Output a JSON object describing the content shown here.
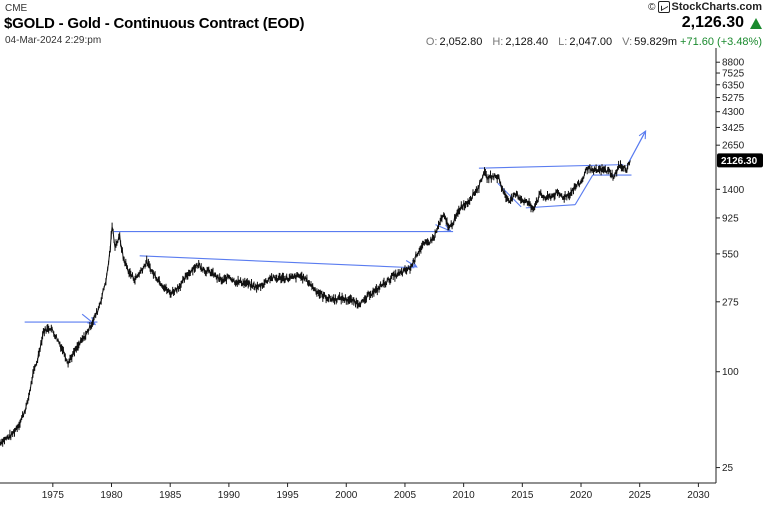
{
  "header": {
    "exchange": "CME",
    "title": "$GOLD - Gold - Continuous Contract (EOD)",
    "datetime": "04-Mar-2024 2:29:pm",
    "brand": "StockCharts.com",
    "brand_prefix": "©",
    "last_price": "2,126.30",
    "ohlc": {
      "open_label": "O:",
      "open": "2,052.80",
      "high_label": "H:",
      "high": "2,128.40",
      "low_label": "L:",
      "low": "2,047.00",
      "volume_label": "V:",
      "volume": "59.829m",
      "change": "+71.60 (+3.48%)"
    }
  },
  "colors": {
    "price": "#111111",
    "trendline": "#5a7cf0",
    "up": "#1a8a2e",
    "badge": "#000000"
  },
  "chart_data": {
    "type": "line",
    "scale": "log",
    "title": "$GOLD - Gold - Continuous Contract (EOD)",
    "xlim": [
      1970.5,
      2031.5
    ],
    "ylim": [
      20,
      10200
    ],
    "x_ticks": [
      1975,
      1980,
      1985,
      1990,
      1995,
      2000,
      2005,
      2010,
      2015,
      2020,
      2025,
      2030
    ],
    "x_tick_labels": [
      "1975",
      "1980",
      "1985",
      "1990",
      "1995",
      "2000",
      "2005",
      "2010",
      "2015",
      "2020",
      "2025",
      "2030"
    ],
    "y_ticks": [
      8800,
      7525,
      6350,
      5275,
      4300,
      3425,
      2650,
      1400,
      925,
      550,
      275,
      100,
      25
    ],
    "y_tick_labels": [
      "8800",
      "7525",
      "6350",
      "5275",
      "4300",
      "3425",
      "2650",
      "1400",
      "925",
      "550",
      "275",
      "100",
      "25"
    ],
    "last_value_label": "2126.30",
    "last_value": 2126.3,
    "series": [
      {
        "name": "Gold",
        "x": [
          1970.5,
          1971.5,
          1972.2,
          1972.8,
          1973.3,
          1973.7,
          1974.2,
          1974.8,
          1975.3,
          1975.9,
          1976.3,
          1976.7,
          1977.3,
          1977.8,
          1978.3,
          1978.8,
          1979.2,
          1979.6,
          1979.9,
          1980.05,
          1980.3,
          1980.7,
          1981.0,
          1981.5,
          1982.0,
          1982.5,
          1983.0,
          1983.5,
          1984.0,
          1984.5,
          1985.0,
          1985.5,
          1986.0,
          1986.5,
          1987.0,
          1987.5,
          1988.0,
          1988.5,
          1989.0,
          1989.5,
          1990.0,
          1990.5,
          1991.0,
          1991.5,
          1992.0,
          1992.5,
          1993.0,
          1993.5,
          1994.0,
          1994.5,
          1995.0,
          1995.5,
          1996.0,
          1996.5,
          1997.0,
          1997.5,
          1998.0,
          1998.5,
          1999.0,
          1999.5,
          2000.0,
          2000.5,
          2001.0,
          2001.5,
          2002.0,
          2002.5,
          2003.0,
          2003.5,
          2004.0,
          2004.5,
          2005.0,
          2005.5,
          2006.0,
          2006.5,
          2007.0,
          2007.5,
          2008.0,
          2008.3,
          2008.8,
          2009.3,
          2009.8,
          2010.3,
          2010.8,
          2011.3,
          2011.7,
          2012.0,
          2012.5,
          2013.0,
          2013.3,
          2013.6,
          2014.0,
          2014.5,
          2015.0,
          2015.5,
          2015.9,
          2016.5,
          2017.0,
          2017.5,
          2018.0,
          2018.5,
          2019.0,
          2019.5,
          2020.0,
          2020.6,
          2021.0,
          2021.5,
          2022.0,
          2022.5,
          2022.8,
          2023.2,
          2023.6,
          2023.9,
          2024.2
        ],
        "values": [
          36,
          40,
          48,
          62,
          95,
          120,
          180,
          190,
          165,
          135,
          115,
          128,
          150,
          170,
          200,
          240,
          300,
          400,
          600,
          820,
          620,
          700,
          520,
          420,
          380,
          430,
          490,
          420,
          380,
          340,
          310,
          330,
          360,
          410,
          450,
          470,
          430,
          420,
          390,
          370,
          400,
          370,
          365,
          360,
          345,
          340,
          360,
          390,
          385,
          390,
          385,
          390,
          400,
          385,
          350,
          320,
          300,
          290,
          285,
          290,
          285,
          280,
          270,
          275,
          310,
          320,
          350,
          370,
          400,
          410,
          430,
          450,
          550,
          620,
          650,
          700,
          880,
          950,
          800,
          920,
          1100,
          1150,
          1300,
          1450,
          1800,
          1650,
          1700,
          1650,
          1400,
          1250,
          1200,
          1300,
          1200,
          1150,
          1060,
          1300,
          1230,
          1270,
          1320,
          1250,
          1300,
          1450,
          1550,
          1950,
          1800,
          1850,
          1850,
          1800,
          1650,
          1950,
          1950,
          1850,
          2126.3
        ]
      }
    ],
    "annotations": {
      "lines": [
        {
          "x": [
            1972.6,
            1978.8
          ],
          "y": [
            205,
            205
          ]
        },
        {
          "x": [
            1980.2,
            2009.1
          ],
          "y": [
            760,
            760
          ]
        },
        {
          "x": [
            1982.4,
            2005.8
          ],
          "y": [
            535,
            450
          ]
        },
        {
          "x": [
            2011.3,
            2023.6
          ],
          "y": [
            1900,
            2000
          ]
        },
        {
          "x": [
            2012.9,
            2014.9
          ],
          "y": [
            1530,
            1085
          ]
        },
        {
          "x": [
            2015.3,
            2019.5
          ],
          "y": [
            1070,
            1120
          ]
        },
        {
          "x": [
            2019.5,
            2021.0
          ],
          "y": [
            1120,
            1720
          ]
        },
        {
          "x": [
            2021.0,
            2024.3
          ],
          "y": [
            1720,
            1720
          ]
        },
        {
          "x": [
            2023.9,
            2025.5
          ],
          "y": [
            1960,
            3250
          ]
        }
      ],
      "arrows": [
        {
          "x": [
            1977.5,
            1978.6
          ],
          "y": [
            230,
            198
          ]
        },
        {
          "x": [
            2005.1,
            2006.0
          ],
          "y": [
            500,
            455
          ]
        },
        {
          "x": [
            2007.6,
            2008.9
          ],
          "y": [
            840,
            765
          ]
        },
        {
          "x": [
            2023.9,
            2025.5
          ],
          "y": [
            1960,
            3250
          ]
        }
      ]
    }
  }
}
